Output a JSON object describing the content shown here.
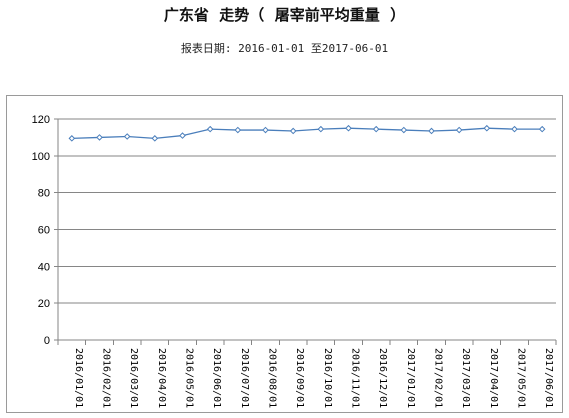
{
  "header": {
    "title": "广东省  走势（  屠宰前平均重量  ）",
    "subtitle": "报表日期: 2016-01-01 至2017-06-01"
  },
  "chart_data": {
    "type": "line",
    "title": "广东省  走势（  屠宰前平均重量  ）",
    "subtitle": "报表日期: 2016-01-01 至2017-06-01",
    "xlabel": "",
    "ylabel": "",
    "categories": [
      "2016/01/01",
      "2016/02/01",
      "2016/03/01",
      "2016/04/01",
      "2016/05/01",
      "2016/06/01",
      "2016/07/01",
      "2016/08/01",
      "2016/09/01",
      "2016/10/01",
      "2016/11/01",
      "2016/12/01",
      "2017/01/01",
      "2017/02/01",
      "2017/03/01",
      "2017/04/01",
      "2017/05/01",
      "2017/06/01"
    ],
    "series": [
      {
        "name": "",
        "values": [
          109.5,
          110,
          110.5,
          109.5,
          111,
          114.5,
          114,
          114,
          113.5,
          114.5,
          115,
          114.5,
          114,
          113.5,
          114,
          115,
          114.5,
          114.5
        ],
        "color": "#4a7ebb"
      }
    ],
    "ylim": [
      0,
      120
    ],
    "yticks": [
      0,
      20,
      40,
      60,
      80,
      100,
      120
    ],
    "grid": true,
    "legend": "none",
    "colors": {
      "line": "#4a7ebb",
      "grid": "#868686",
      "axis": "#868686",
      "text": "#000000"
    }
  }
}
